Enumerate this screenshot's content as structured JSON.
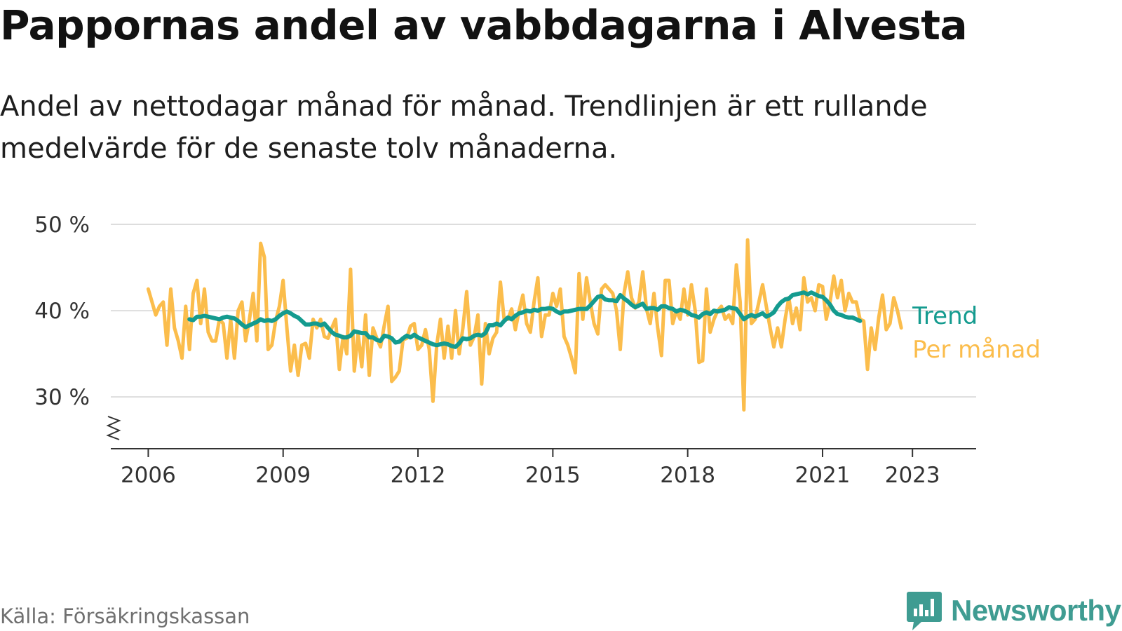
{
  "header": {
    "title": "Pappornas andel av vabbdagarna i Alvesta",
    "subtitle": "Andel av nettodagar månad för månad. Trendlinjen är ett rullande medelvärde för de senaste tolv månaderna."
  },
  "footer": {
    "source": "Källa: Försäkringskassan",
    "brand": "Newsworthy",
    "brand_icon": "newsworthy-logo-icon"
  },
  "colors": {
    "trend": "#149b8f",
    "monthly": "#fbbd4c",
    "grid": "#dddddd",
    "axis": "#333333",
    "brand": "#3f9c92"
  },
  "chart_data": {
    "type": "line",
    "title": "Pappornas andel av vabbdagarna i Alvesta",
    "subtitle": "Andel av nettodagar månad för månad. Trendlinjen är ett rullande medelvärde för de senaste tolv månaderna.",
    "xlabel": "",
    "ylabel": "",
    "ylim": [
      24,
      50
    ],
    "xlim": [
      "2005-03",
      "2024-06"
    ],
    "y_ticks": [
      {
        "value": 30,
        "label": "30 %"
      },
      {
        "value": 40,
        "label": "40 %"
      },
      {
        "value": 50,
        "label": "50 %"
      }
    ],
    "x_ticks": [
      {
        "value": "2006-01",
        "label": "2006"
      },
      {
        "value": "2009-01",
        "label": "2009"
      },
      {
        "value": "2012-01",
        "label": "2012"
      },
      {
        "value": "2015-01",
        "label": "2015"
      },
      {
        "value": "2018-01",
        "label": "2018"
      },
      {
        "value": "2021-01",
        "label": "2021"
      },
      {
        "value": "2023-01",
        "label": "2023"
      }
    ],
    "grid": true,
    "axis_break": true,
    "legend": "right-end labels",
    "series": [
      {
        "name": "Per månad",
        "start": "2006-01",
        "frequency": "monthly",
        "values": [
          42.5,
          41,
          39.5,
          40.5,
          41,
          36,
          42.5,
          38,
          36.5,
          34.5,
          40.5,
          35.5,
          42,
          43.5,
          38.5,
          42.5,
          37.5,
          36.5,
          36.5,
          39,
          38.5,
          34.5,
          39,
          34.5,
          40,
          41,
          36.5,
          39,
          42,
          36.5,
          47.8,
          46.2,
          35.5,
          36,
          38.8,
          40.5,
          43.5,
          38,
          33,
          36,
          32.5,
          36,
          36.2,
          34.5,
          39,
          38,
          39,
          37,
          36.8,
          38,
          39,
          33.2,
          37,
          35,
          44.8,
          33,
          37.4,
          33.5,
          39.5,
          32.5,
          38,
          36.8,
          35.8,
          38.3,
          40.5,
          31.8,
          32.3,
          33,
          36.6,
          36.8,
          38.2,
          38.5,
          35.5,
          36,
          37.8,
          35.5,
          29.5,
          36,
          39,
          34.5,
          38.2,
          34.5,
          40,
          35,
          38,
          42.2,
          36,
          37,
          39.5,
          31.5,
          38.5,
          35,
          36.8,
          37.5,
          43.3,
          39,
          39,
          40.2,
          37.8,
          40,
          41.8,
          38.5,
          37.5,
          41,
          43.8,
          37,
          39.5,
          39.5,
          42,
          40.5,
          42.5,
          37,
          36,
          34.5,
          32.8,
          44.3,
          39,
          43.8,
          41,
          38.5,
          37.3,
          42.5,
          43,
          42.5,
          42,
          40,
          35.5,
          42,
          44.5,
          41.5,
          40.3,
          41,
          44.5,
          40.2,
          38.5,
          42,
          38,
          34.8,
          43.5,
          43.5,
          38.5,
          40,
          39,
          42.5,
          39.5,
          43,
          40,
          34,
          34.2,
          42.5,
          37.5,
          39,
          40,
          40.5,
          39,
          39.5,
          38.5,
          45.3,
          41,
          28.5,
          48.2,
          38.5,
          39,
          41,
          43,
          40.5,
          38,
          35.8,
          38,
          35.8,
          39,
          41.5,
          38.5,
          40.3,
          37.8,
          43.8,
          41,
          41.5,
          40,
          43,
          42.8,
          39,
          41,
          44,
          41.5,
          43.5,
          40,
          42,
          41,
          41,
          39,
          38.8,
          33.2,
          38,
          35.5,
          39.2,
          41.8,
          37.8,
          38.5,
          41.5,
          40,
          38
        ]
      },
      {
        "name": "Trend",
        "start": "2006-12",
        "frequency": "monthly",
        "values": [
          39,
          38.9,
          39.3,
          39.3,
          39.4,
          39.3,
          39.2,
          39.1,
          39,
          39.2,
          39.3,
          39.2,
          39.1,
          38.8,
          38.4,
          38.1,
          38.3,
          38.5,
          38.7,
          39,
          38.8,
          38.9,
          38.8,
          39,
          39.4,
          39.7,
          39.9,
          39.7,
          39.4,
          39.2,
          38.8,
          38.4,
          38.4,
          38.5,
          38.5,
          38.3,
          38.5,
          38,
          37.5,
          37.2,
          37.1,
          36.9,
          36.9,
          37.1,
          37.6,
          37.5,
          37.4,
          37.4,
          36.9,
          36.9,
          36.6,
          36.5,
          37.1,
          37,
          36.8,
          36.3,
          36.4,
          36.8,
          37.1,
          36.9,
          37.2,
          36.9,
          36.7,
          36.5,
          36.3,
          36.1,
          36,
          36.1,
          36.2,
          36.1,
          35.9,
          35.8,
          36.2,
          36.8,
          36.7,
          36.8,
          37.1,
          37.2,
          37.1,
          37.4,
          38.3,
          38.3,
          38.5,
          38.3,
          38.8,
          39.2,
          39,
          39.4,
          39.7,
          39.8,
          40,
          39.9,
          40.1,
          40,
          40.2,
          40.2,
          40.3,
          40.2,
          39.9,
          39.7,
          39.9,
          39.9,
          40,
          40.1,
          40.2,
          40.2,
          40.2,
          40.6,
          41.1,
          41.6,
          41.7,
          41.3,
          41.2,
          41.2,
          41.1,
          41.8,
          41.4,
          41.1,
          40.7,
          40.4,
          40.6,
          40.8,
          40.2,
          40.3,
          40.3,
          40.1,
          40.5,
          40.5,
          40.3,
          40.2,
          39.9,
          40.1,
          40,
          39.8,
          39.5,
          39.4,
          39.2,
          39.6,
          39.8,
          39.6,
          40,
          39.9,
          40,
          40.1,
          40.4,
          40.3,
          40.2,
          39.6,
          39,
          39.3,
          39.5,
          39.3,
          39.5,
          39.7,
          39.3,
          39.5,
          39.8,
          40.5,
          41,
          41.3,
          41.4,
          41.8,
          41.9,
          42,
          42.1,
          41.9,
          42.1,
          41.9,
          41.7,
          41.6,
          41.2,
          40.7,
          40,
          39.6,
          39.5,
          39.3,
          39.2,
          39.2,
          39,
          38.8
        ]
      }
    ]
  }
}
